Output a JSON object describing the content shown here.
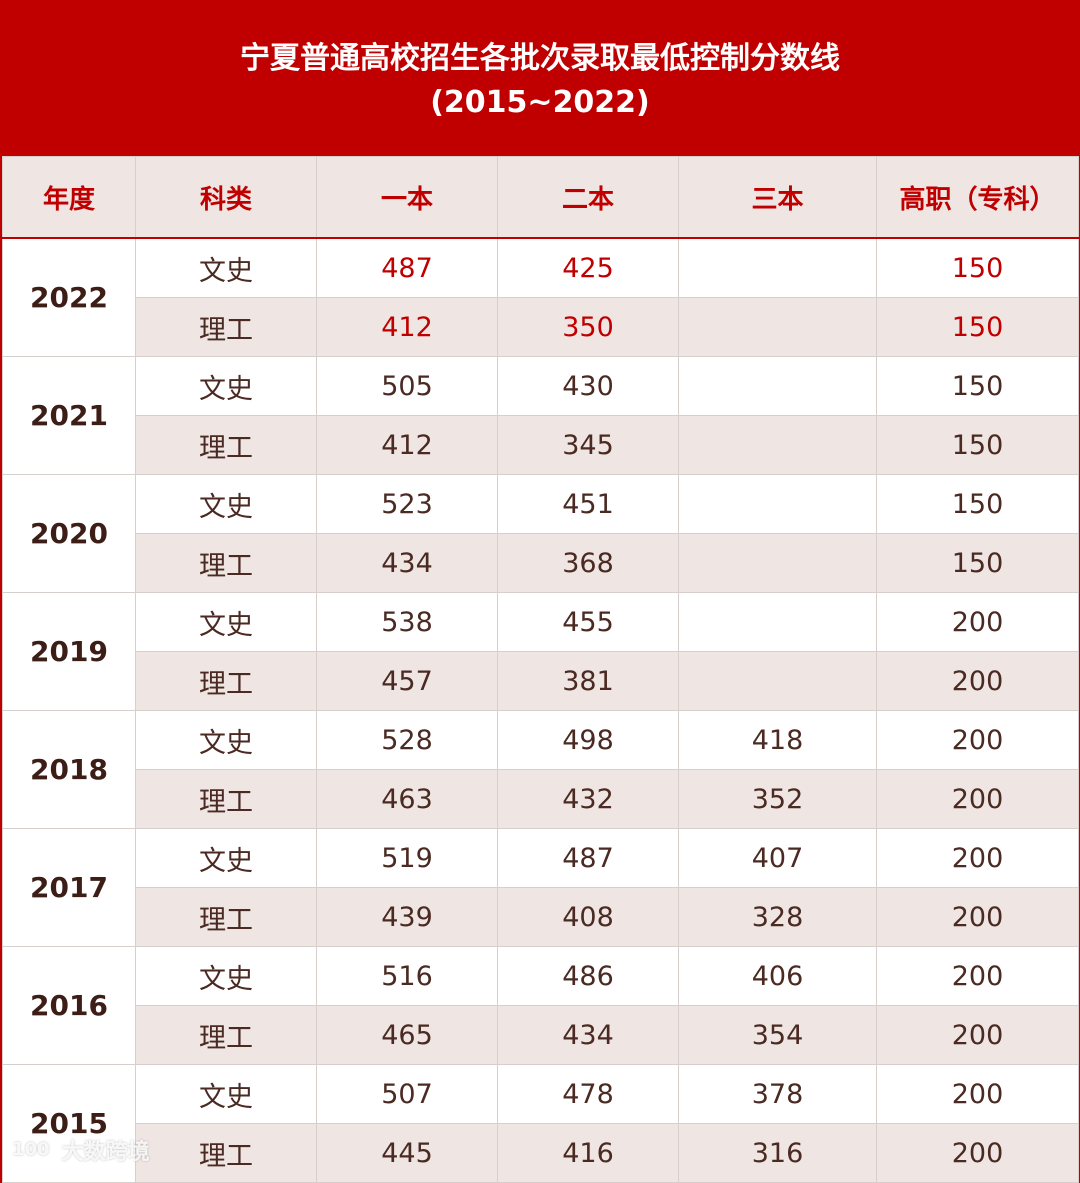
{
  "title": {
    "line1": "宁夏普通高校招生各批次录取最低控制分数线",
    "line2": "(2015~2022)"
  },
  "headers": [
    "年度",
    "科类",
    "一本",
    "二本",
    "三本",
    "高职（专科）"
  ],
  "years": [
    {
      "year": "2022",
      "rows": [
        {
          "type": "文史",
          "yi": "487",
          "er": "425",
          "san": "",
          "gz": "150"
        },
        {
          "type": "理工",
          "yi": "412",
          "er": "350",
          "san": "",
          "gz": "150"
        }
      ]
    },
    {
      "year": "2021",
      "rows": [
        {
          "type": "文史",
          "yi": "505",
          "er": "430",
          "san": "",
          "gz": "150"
        },
        {
          "type": "理工",
          "yi": "412",
          "er": "345",
          "san": "",
          "gz": "150"
        }
      ]
    },
    {
      "year": "2020",
      "rows": [
        {
          "type": "文史",
          "yi": "523",
          "er": "451",
          "san": "",
          "gz": "150"
        },
        {
          "type": "理工",
          "yi": "434",
          "er": "368",
          "san": "",
          "gz": "150"
        }
      ]
    },
    {
      "year": "2019",
      "rows": [
        {
          "type": "文史",
          "yi": "538",
          "er": "455",
          "san": "",
          "gz": "200"
        },
        {
          "type": "理工",
          "yi": "457",
          "er": "381",
          "san": "",
          "gz": "200"
        }
      ]
    },
    {
      "year": "2018",
      "rows": [
        {
          "type": "文史",
          "yi": "528",
          "er": "498",
          "san": "418",
          "gz": "200"
        },
        {
          "type": "理工",
          "yi": "463",
          "er": "432",
          "san": "352",
          "gz": "200"
        }
      ]
    },
    {
      "year": "2017",
      "rows": [
        {
          "type": "文史",
          "yi": "519",
          "er": "487",
          "san": "407",
          "gz": "200"
        },
        {
          "type": "理工",
          "yi": "439",
          "er": "408",
          "san": "328",
          "gz": "200"
        }
      ]
    },
    {
      "year": "2016",
      "rows": [
        {
          "type": "文史",
          "yi": "516",
          "er": "486",
          "san": "406",
          "gz": "200"
        },
        {
          "type": "理工",
          "yi": "465",
          "er": "434",
          "san": "354",
          "gz": "200"
        }
      ]
    },
    {
      "year": "2015",
      "rows": [
        {
          "type": "文史",
          "yi": "507",
          "er": "478",
          "san": "378",
          "gz": "200"
        },
        {
          "type": "理工",
          "yi": "445",
          "er": "416",
          "san": "316",
          "gz": "200"
        }
      ]
    }
  ],
  "watermark": {
    "logo": "100",
    "text": "大数跨境"
  },
  "colors": {
    "accent": "#c00000",
    "header_bg": "#efe5e2",
    "text": "#4a2a22"
  }
}
